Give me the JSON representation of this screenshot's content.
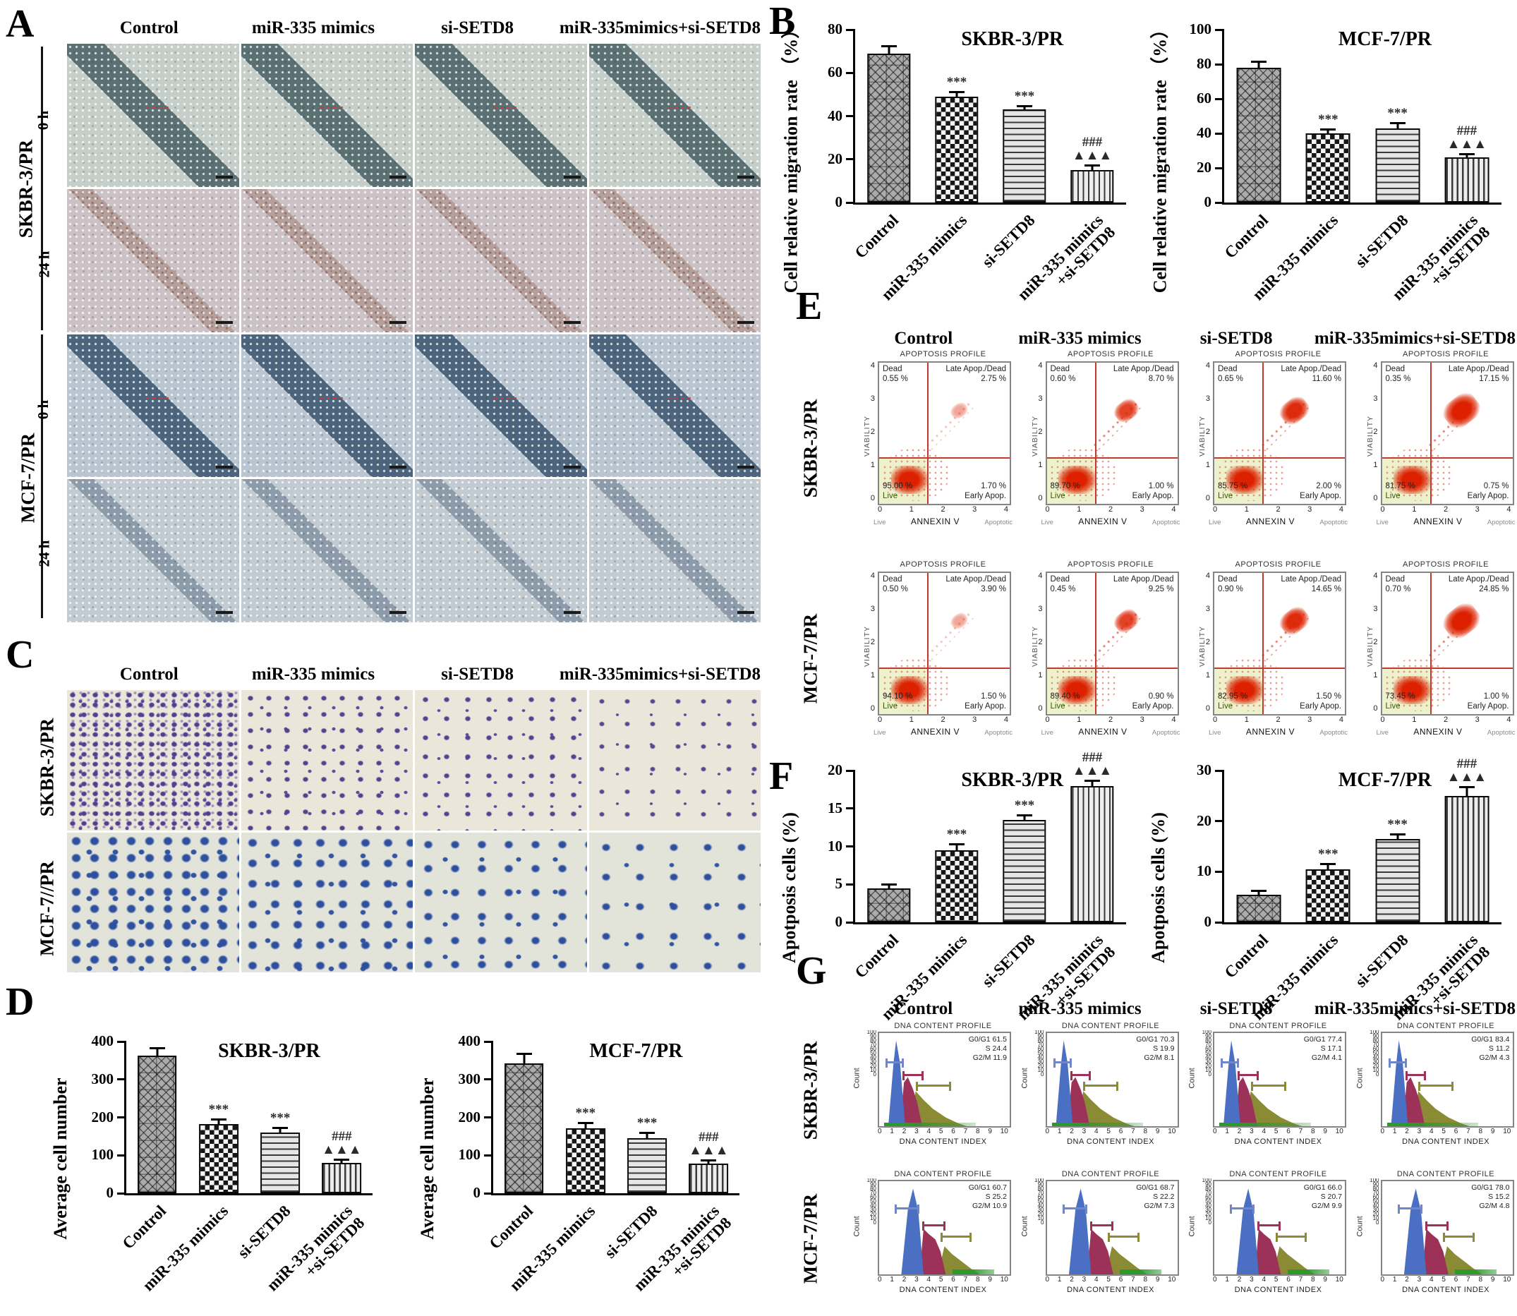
{
  "panelA": {
    "label": "A",
    "col_headers": [
      "Control",
      "miR-335 mimics",
      "si-SETD8",
      "miR-335mimics+si-SETD8"
    ],
    "cell_lines": [
      "SKBR-3/PR",
      "MCF-7/PR"
    ],
    "timepoints": [
      "0 h",
      "24 h"
    ]
  },
  "panelB": {
    "label": "B"
  },
  "panelC": {
    "label": "C",
    "col_headers": [
      "Control",
      "miR-335 mimics",
      "si-SETD8",
      "miR-335mimics+si-SETD8"
    ],
    "row_labels": [
      "SKBR-3/PR",
      "MCF-7//PR"
    ]
  },
  "panelD": {
    "label": "D"
  },
  "panelE": {
    "label": "E",
    "col_headers": [
      "Control",
      "miR-335 mimics",
      "si-SETD8",
      "miR-335mimics+si-SETD8"
    ],
    "plot_title": "APOPTOSIS PROFILE",
    "xlabel": "ANNEXIN V",
    "ylabel": "VIABILITY",
    "x_left": "Live",
    "x_right": "Apoptotic",
    "xticks": [
      "0",
      "1",
      "2",
      "3",
      "4"
    ],
    "yticks": [
      "0",
      "1",
      "2",
      "3",
      "4"
    ],
    "quad_labels": {
      "dead": "Dead",
      "late": "Late Apop./Dead",
      "live": "Live",
      "early": "Early Apop."
    },
    "rows": [
      {
        "cell": "SKBR-3/PR",
        "plots": [
          {
            "dead": "0.55 %",
            "late": "2.75 %",
            "live": "95.00 %",
            "early": "1.70 %"
          },
          {
            "dead": "0.60 %",
            "late": "8.70 %",
            "live": "89.70 %",
            "early": "1.00 %"
          },
          {
            "dead": "0.65 %",
            "late": "11.60 %",
            "live": "85.75 %",
            "early": "2.00 %"
          },
          {
            "dead": "0.35 %",
            "late": "17.15 %",
            "live": "81.75 %",
            "early": "0.75 %"
          }
        ]
      },
      {
        "cell": "MCF-7/PR",
        "plots": [
          {
            "dead": "0.50 %",
            "late": "3.90 %",
            "live": "94.10 %",
            "early": "1.50 %"
          },
          {
            "dead": "0.45 %",
            "late": "9.25 %",
            "live": "89.40 %",
            "early": "0.90 %"
          },
          {
            "dead": "0.90 %",
            "late": "14.65 %",
            "live": "82.95 %",
            "early": "1.50 %"
          },
          {
            "dead": "0.70 %",
            "late": "24.85 %",
            "live": "73.45 %",
            "early": "1.00 %"
          }
        ]
      }
    ]
  },
  "panelF": {
    "label": "F"
  },
  "panelG": {
    "label": "G",
    "col_headers": [
      "Control",
      "miR-335 mimics",
      "si-SETD8",
      "miR-335mimics+si-SETD8"
    ],
    "plot_title": "DNA CONTENT PROFILE",
    "xlabel": "DNA CONTENT INDEX",
    "ylabel": "Count",
    "yticks": [
      "100",
      "90",
      "80",
      "70",
      "60",
      "50",
      "40",
      "30",
      "20",
      "10",
      "0"
    ],
    "xticks": [
      "0",
      "1",
      "2",
      "3",
      "4",
      "5",
      "6",
      "7",
      "8",
      "9",
      "10"
    ],
    "stat_labels": {
      "g0g1": "G0/G1",
      "s": "S",
      "g2m": "G2/M"
    },
    "rows": [
      {
        "cell": "SKBR-3/PR",
        "plots": [
          {
            "g0g1": "61.5",
            "s": "24.4",
            "g2m": "11.9"
          },
          {
            "g0g1": "70.3",
            "s": "19.9",
            "g2m": "8.1"
          },
          {
            "g0g1": "77.4",
            "s": "17.1",
            "g2m": "4.1"
          },
          {
            "g0g1": "83.4",
            "s": "11.2",
            "g2m": "4.3"
          }
        ]
      },
      {
        "cell": "MCF-7/PR",
        "plots": [
          {
            "g0g1": "60.7",
            "s": "25.2",
            "g2m": "10.9"
          },
          {
            "g0g1": "68.7",
            "s": "22.2",
            "g2m": "7.3"
          },
          {
            "g0g1": "66.0",
            "s": "20.7",
            "g2m": "9.9"
          },
          {
            "g0g1": "78.0",
            "s": "15.2",
            "g2m": "4.8"
          }
        ]
      }
    ]
  },
  "chart_data": [
    {
      "type": "bar",
      "panel": "B",
      "title": "SKBR-3/PR",
      "ylabel": "Cell relative migration rate （%）",
      "categories": [
        "Control",
        "miR-335 mimics",
        "si-SETD8",
        "miR-335 mimics\n+si-SETD8"
      ],
      "values": [
        69,
        49,
        43,
        15
      ],
      "errors": [
        3,
        1.5,
        1.2,
        1.5
      ],
      "sig": [
        "",
        "***",
        "***",
        "###\n▲▲▲"
      ],
      "ylim": [
        0,
        80
      ],
      "yticks": [
        0,
        20,
        40,
        60,
        80
      ]
    },
    {
      "type": "bar",
      "panel": "B",
      "title": "MCF-7/PR",
      "ylabel": "Cell relative migration rate （%）",
      "categories": [
        "Control",
        "miR-335 mimics",
        "si-SETD8",
        "miR-335 mimics\n+si-SETD8"
      ],
      "values": [
        78,
        40,
        43,
        26
      ],
      "errors": [
        3,
        1.5,
        2.5,
        1.5
      ],
      "sig": [
        "",
        "***",
        "***",
        "###\n▲▲▲"
      ],
      "ylim": [
        0,
        100
      ],
      "yticks": [
        0,
        20,
        40,
        60,
        80,
        100
      ]
    },
    {
      "type": "bar",
      "panel": "D",
      "title": "SKBR-3/PR",
      "ylabel": "Average cell number",
      "categories": [
        "Control",
        "miR-335 mimics",
        "si-SETD8",
        "miR-335 mimics\n+si-SETD8"
      ],
      "values": [
        362,
        183,
        160,
        80
      ],
      "errors": [
        18,
        8,
        10,
        6
      ],
      "sig": [
        "",
        "***",
        "***",
        "###\n▲▲▲"
      ],
      "ylim": [
        0,
        400
      ],
      "yticks": [
        0,
        100,
        200,
        300,
        400
      ]
    },
    {
      "type": "bar",
      "panel": "D",
      "title": "MCF-7/PR",
      "ylabel": "Average cell number",
      "categories": [
        "Control",
        "miR-335 mimics",
        "si-SETD8",
        "miR-335 mimics\n+si-SETD8"
      ],
      "values": [
        342,
        172,
        145,
        78
      ],
      "errors": [
        22,
        10,
        12,
        6
      ],
      "sig": [
        "",
        "***",
        "***",
        "###\n▲▲▲"
      ],
      "ylim": [
        0,
        400
      ],
      "yticks": [
        0,
        100,
        200,
        300,
        400
      ]
    },
    {
      "type": "bar",
      "panel": "F",
      "title": "SKBR-3/PR",
      "ylabel": "Apotposis cells (%)",
      "categories": [
        "Control",
        "miR-335 mimics",
        "si-SETD8",
        "miR-335 mimics\n+si-SETD8"
      ],
      "values": [
        4.5,
        9.5,
        13.5,
        18
      ],
      "errors": [
        0.3,
        0.6,
        0.5,
        0.5
      ],
      "sig": [
        "",
        "***",
        "***",
        "###\n▲▲▲"
      ],
      "ylim": [
        0,
        20
      ],
      "yticks": [
        0,
        5,
        10,
        15,
        20
      ]
    },
    {
      "type": "bar",
      "panel": "F",
      "title": "MCF-7/PR",
      "ylabel": "Apotposis cells (%)",
      "categories": [
        "Control",
        "miR-335 mimics",
        "si-SETD8",
        "miR-335 mimics\n+si-SETD8"
      ],
      "values": [
        5.5,
        10.5,
        16.5,
        25
      ],
      "errors": [
        0.5,
        0.8,
        0.6,
        1.5
      ],
      "sig": [
        "",
        "***",
        "***",
        "###\n▲▲▲"
      ],
      "ylim": [
        0,
        30
      ],
      "yticks": [
        0,
        10,
        20,
        30
      ]
    }
  ]
}
